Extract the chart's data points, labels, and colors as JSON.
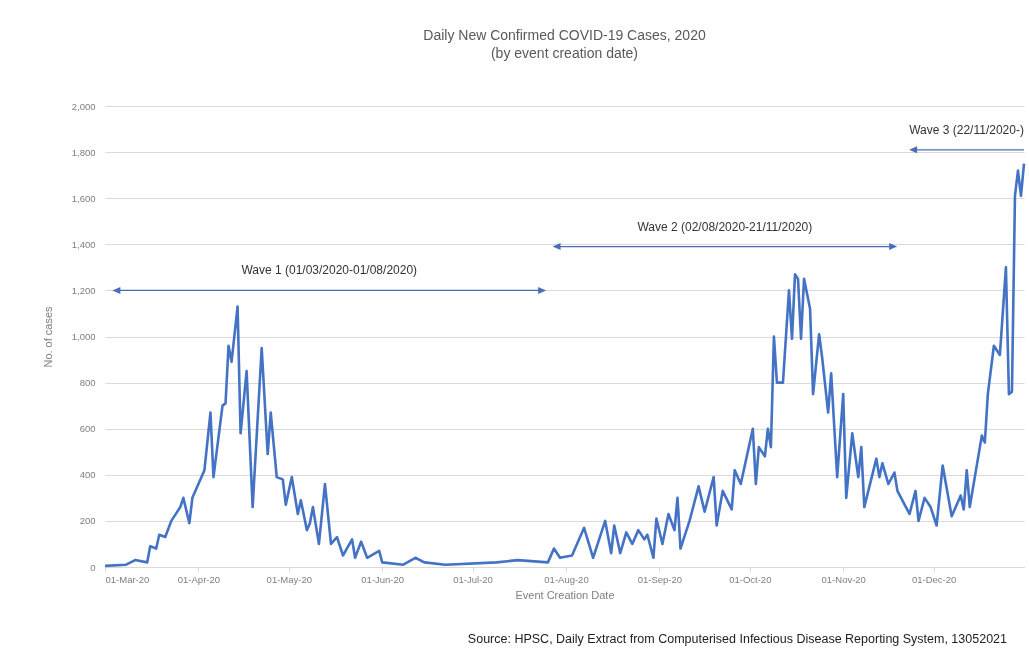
{
  "chart_data": {
    "type": "line",
    "title": "Daily New Confirmed COVID-19 Cases, 2020",
    "subtitle": "(by event creation date)",
    "xlabel": "Event Creation Date",
    "ylabel": "No. of cases",
    "annotations": [
      "Wave 1 (01/03/2020-01/08/2020)",
      "Wave 2 (02/08/2020-21/11/2020)",
      "Wave 3 (22/11/2020-)",
      "Source: HPSC, Daily Extract from Computerised Infectious Disease Reporting System, 13052021"
    ],
    "x": [
      "2020-03-01",
      "2020-03-08",
      "2020-03-11",
      "2020-03-15",
      "2020-03-16",
      "2020-03-18",
      "2020-03-19",
      "2020-03-21",
      "2020-03-23",
      "2020-03-26",
      "2020-03-27",
      "2020-03-29",
      "2020-03-30",
      "2020-04-01",
      "2020-04-03",
      "2020-04-05",
      "2020-04-06",
      "2020-04-09",
      "2020-04-10",
      "2020-04-11",
      "2020-04-12",
      "2020-04-14",
      "2020-04-15",
      "2020-04-17",
      "2020-04-19",
      "2020-04-22",
      "2020-04-24",
      "2020-04-25",
      "2020-04-27",
      "2020-04-29",
      "2020-04-30",
      "2020-05-02",
      "2020-05-04",
      "2020-05-05",
      "2020-05-07",
      "2020-05-08",
      "2020-05-09",
      "2020-05-11",
      "2020-05-13",
      "2020-05-15",
      "2020-05-17",
      "2020-05-19",
      "2020-05-22",
      "2020-05-23",
      "2020-05-25",
      "2020-05-27",
      "2020-05-31",
      "2020-06-01",
      "2020-06-08",
      "2020-06-12",
      "2020-06-15",
      "2020-06-22",
      "2020-07-09",
      "2020-07-16",
      "2020-07-26",
      "2020-07-28",
      "2020-07-30",
      "2020-08-03",
      "2020-08-07",
      "2020-08-10",
      "2020-08-14",
      "2020-08-16",
      "2020-08-17",
      "2020-08-19",
      "2020-08-21",
      "2020-08-23",
      "2020-08-25",
      "2020-08-27",
      "2020-08-28",
      "2020-08-30",
      "2020-08-31",
      "2020-09-02",
      "2020-09-04",
      "2020-09-06",
      "2020-09-07",
      "2020-09-08",
      "2020-09-11",
      "2020-09-14",
      "2020-09-16",
      "2020-09-19",
      "2020-09-20",
      "2020-09-22",
      "2020-09-25",
      "2020-09-26",
      "2020-09-28",
      "2020-10-02",
      "2020-10-03",
      "2020-10-04",
      "2020-10-06",
      "2020-10-07",
      "2020-10-08",
      "2020-10-09",
      "2020-10-10",
      "2020-10-12",
      "2020-10-14",
      "2020-10-15",
      "2020-10-16",
      "2020-10-17",
      "2020-10-18",
      "2020-10-19",
      "2020-10-21",
      "2020-10-22",
      "2020-10-24",
      "2020-10-25",
      "2020-10-27",
      "2020-10-28",
      "2020-10-30",
      "2020-11-01",
      "2020-11-02",
      "2020-11-04",
      "2020-11-06",
      "2020-11-07",
      "2020-11-08",
      "2020-11-12",
      "2020-11-13",
      "2020-11-14",
      "2020-11-16",
      "2020-11-18",
      "2020-11-19",
      "2020-11-23",
      "2020-11-25",
      "2020-11-26",
      "2020-11-28",
      "2020-11-30",
      "2020-12-02",
      "2020-12-04",
      "2020-12-07",
      "2020-12-10",
      "2020-12-11",
      "2020-12-12",
      "2020-12-13",
      "2020-12-17",
      "2020-12-18",
      "2020-12-19",
      "2020-12-21",
      "2020-12-23",
      "2020-12-25",
      "2020-12-26",
      "2020-12-27",
      "2020-12-28",
      "2020-12-29",
      "2020-12-30",
      "2020-12-31"
    ],
    "series": [
      {
        "color": "#4472c4",
        "values": [
          5,
          10,
          30,
          20,
          90,
          80,
          140,
          130,
          200,
          260,
          300,
          190,
          300,
          360,
          420,
          670,
          390,
          700,
          710,
          960,
          890,
          1130,
          580,
          850,
          260,
          950,
          490,
          670,
          390,
          380,
          270,
          390,
          230,
          290,
          160,
          190,
          260,
          100,
          360,
          100,
          130,
          50,
          120,
          40,
          110,
          40,
          70,
          20,
          10,
          40,
          20,
          10,
          20,
          30,
          20,
          80,
          40,
          50,
          170,
          40,
          200,
          60,
          180,
          60,
          150,
          100,
          160,
          120,
          140,
          40,
          210,
          100,
          230,
          160,
          300,
          80,
          200,
          350,
          240,
          390,
          180,
          330,
          250,
          420,
          360,
          600,
          360,
          520,
          480,
          600,
          520,
          1000,
          800,
          800,
          1200,
          990,
          1270,
          1250,
          990,
          1250,
          1120,
          750,
          1010,
          910,
          670,
          840,
          390,
          750,
          300,
          580,
          390,
          520,
          260,
          470,
          390,
          450,
          360,
          410,
          330,
          230,
          330,
          200,
          300,
          260,
          180,
          440,
          220,
          310,
          250,
          420,
          260,
          570,
          540,
          750,
          960,
          920,
          1300,
          750,
          760,
          1610,
          1720,
          1610,
          1750
        ]
      }
    ],
    "xlim": [
      "2020-03-01",
      "2020-12-31"
    ],
    "xticks": [
      {
        "value": "2020-03-01",
        "label": "01-Mar-20"
      },
      {
        "value": "2020-04-01",
        "label": "01-Apr-20"
      },
      {
        "value": "2020-05-01",
        "label": "01-May-20"
      },
      {
        "value": "2020-06-01",
        "label": "01-Jun-20"
      },
      {
        "value": "2020-07-01",
        "label": "01-Jul-20"
      },
      {
        "value": "2020-08-01",
        "label": "01-Aug-20"
      },
      {
        "value": "2020-09-01",
        "label": "01-Sep-20"
      },
      {
        "value": "2020-10-01",
        "label": "01-Oct-20"
      },
      {
        "value": "2020-11-01",
        "label": "01-Nov-20"
      },
      {
        "value": "2020-12-01",
        "label": "01-Dec-20"
      }
    ],
    "ylim": [
      0,
      2000
    ],
    "yticks": [
      {
        "value": 0,
        "label": "0"
      },
      {
        "value": 200,
        "label": "200"
      },
      {
        "value": 400,
        "label": "400"
      },
      {
        "value": 600,
        "label": "600"
      },
      {
        "value": 800,
        "label": "800"
      },
      {
        "value": 1000,
        "label": "1,000"
      },
      {
        "value": 1200,
        "label": "1,200"
      },
      {
        "value": 1400,
        "label": "1,400"
      },
      {
        "value": 1600,
        "label": "1,600"
      },
      {
        "value": 1800,
        "label": "1,800"
      },
      {
        "value": 2000,
        "label": "2,000"
      }
    ],
    "grid": "y"
  }
}
